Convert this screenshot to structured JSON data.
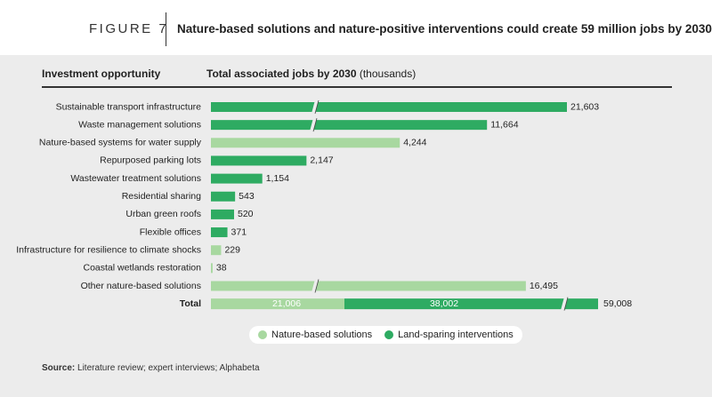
{
  "figure": {
    "label": "FIGURE 7",
    "title": "Nature-based solutions and nature-positive interventions could create 59 million jobs by 2030"
  },
  "headers": {
    "left": "Investment opportunity",
    "right_bold": "Total associated jobs by 2030",
    "right_unit": " (thousands)"
  },
  "colors": {
    "nature_based": "#a8d8a0",
    "land_sparing": "#2eab62",
    "panel": "#ececec"
  },
  "chart_data": {
    "type": "bar",
    "orientation": "horizontal",
    "axis_break": true,
    "ylabel": "Investment opportunity",
    "xlabel": "Total associated jobs by 2030 (thousands)",
    "categories": [
      "Sustainable transport infrastructure",
      "Waste management solutions",
      "Nature-based systems for water supply",
      "Repurposed parking lots",
      "Wastewater treatment solutions",
      "Residential sharing",
      "Urban green roofs",
      "Flexible offices",
      "Infrastructure for resilience to climate shocks",
      "Coastal wetlands restoration",
      "Other nature-based solutions"
    ],
    "values": [
      21603,
      11664,
      4244,
      2147,
      1154,
      543,
      520,
      371,
      229,
      38,
      16495
    ],
    "labels": [
      "21,603",
      "11,664",
      "4,244",
      "2,147",
      "1,154",
      "543",
      "520",
      "371",
      "229",
      "38",
      "16,495"
    ],
    "series_type": [
      "land",
      "land",
      "nature",
      "land",
      "land",
      "land",
      "land",
      "land",
      "nature",
      "nature",
      "nature"
    ],
    "total": {
      "label": "Total",
      "nature_based": 21006,
      "nature_based_label": "21,006",
      "land_sparing": 38002,
      "land_sparing_label": "38,002",
      "sum": 59008,
      "sum_label": "59,008"
    },
    "legend": [
      {
        "name": "Nature-based solutions",
        "key": "nature"
      },
      {
        "name": "Land-sparing interventions",
        "key": "land"
      }
    ]
  },
  "source": {
    "prefix": "Source:",
    "text": " Literature review; expert interviews; Alphabeta"
  }
}
